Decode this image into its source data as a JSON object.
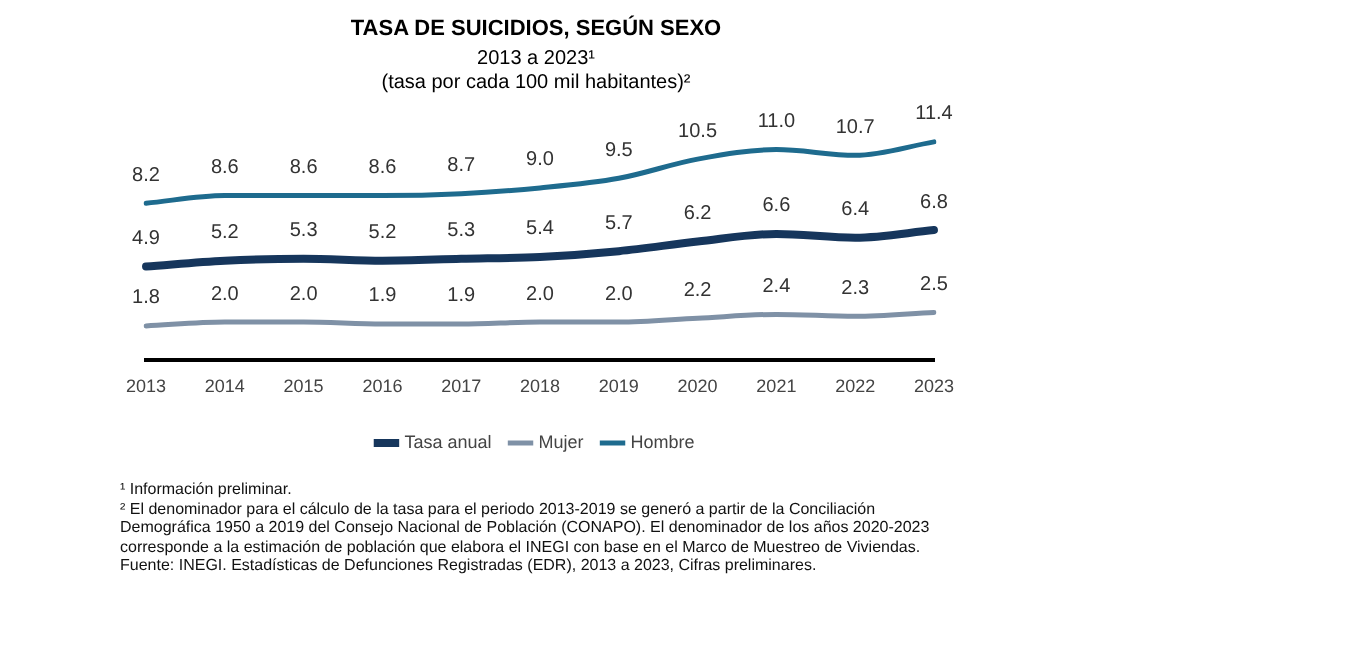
{
  "chart_data": {
    "type": "line",
    "title": "TASA DE SUICIDIOS, SEGÚN SEXO",
    "subtitle": "2013 a 2023¹\n(tasa por cada 100 mil habitantes)²",
    "categories": [
      "2013",
      "2014",
      "2015",
      "2016",
      "2017",
      "2018",
      "2019",
      "2020",
      "2021",
      "2022",
      "2023"
    ],
    "series": [
      {
        "name": "Tasa anual",
        "color": "#16365c",
        "values": [
          4.9,
          5.2,
          5.3,
          5.2,
          5.3,
          5.4,
          5.7,
          6.2,
          6.6,
          6.4,
          6.8
        ],
        "value_labels": [
          "4.9",
          "5.2",
          "5.3",
          "5.2",
          "5.3",
          "5.4",
          "5.7",
          "6.2",
          "6.6",
          "6.4",
          "6.8"
        ]
      },
      {
        "name": "Mujer",
        "color": "#7f91a6",
        "values": [
          1.8,
          2.0,
          2.0,
          1.9,
          1.9,
          2.0,
          2.0,
          2.2,
          2.4,
          2.3,
          2.5
        ],
        "value_labels": [
          "1.8",
          "2.0",
          "2.0",
          "1.9",
          "1.9",
          "2.0",
          "2.0",
          "2.2",
          "2.4",
          "2.3",
          "2.5"
        ]
      },
      {
        "name": "Hombre",
        "color": "#1e6b8e",
        "values": [
          8.2,
          8.6,
          8.6,
          8.6,
          8.7,
          9.0,
          9.5,
          10.5,
          11.0,
          10.7,
          11.4
        ],
        "value_labels": [
          "8.2",
          "8.6",
          "8.6",
          "8.6",
          "8.7",
          "9.0",
          "9.5",
          "10.5",
          "11.0",
          "10.7",
          "11.4"
        ]
      }
    ],
    "grid": false,
    "legend": "bottom",
    "marker": "none",
    "line_style": "solid",
    "annotations": [
      "¹ Información preliminar.",
      "² El denominador para el cálculo de la tasa para el periodo 2013-2019 se generó a partir de la Conciliación Demográfica 1950 a 2019 del Consejo Nacional de Población (CONAPO). El denominador de los años 2020-2023 corresponde a la estimación de población que elabora el INEGI con base en el Marco de Muestreo de Viviendas.",
      "Fuente: INEGI. Estadísticas de Defunciones Registradas (EDR), 2013 a 2023, Cifras preliminares."
    ]
  }
}
